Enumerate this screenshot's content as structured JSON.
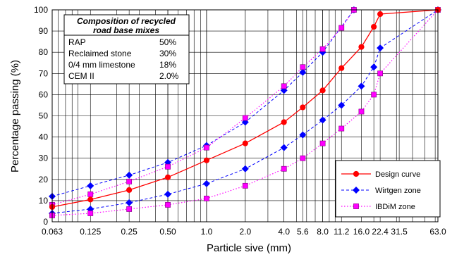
{
  "chart_data": {
    "type": "line",
    "xlabel": "Particle sive (mm)",
    "ylabel": "Percentage passing (%)",
    "x_scale": "log",
    "xlim": [
      0.063,
      63.0
    ],
    "ylim": [
      0,
      100
    ],
    "grid": true,
    "x_ticks": [
      0.063,
      0.125,
      0.25,
      0.5,
      1.0,
      2.0,
      4.0,
      5.6,
      8.0,
      11.2,
      16.0,
      22.4,
      31.5,
      63.0
    ],
    "x_tick_labels": [
      "0.063",
      "0.125",
      "0.25",
      "0.50",
      "1.0",
      "2.0",
      "4.0",
      "5.6",
      "8.0",
      "11.2",
      "16.0",
      "22.4",
      "31.5",
      "63.0"
    ],
    "y_ticks": [
      0,
      10,
      20,
      30,
      40,
      50,
      60,
      70,
      80,
      90,
      100
    ],
    "y_tick_labels": [
      "0",
      "10",
      "20",
      "30",
      "40",
      "50",
      "60",
      "70",
      "80",
      "90",
      "100"
    ],
    "legend_position": "bottom-right",
    "series": [
      {
        "name": "Design curve",
        "color": "#ff0000",
        "style": "solid-line-circle-markers",
        "points": [
          [
            0.063,
            7
          ],
          [
            0.125,
            10.5
          ],
          [
            0.25,
            15
          ],
          [
            0.5,
            21
          ],
          [
            1.0,
            29
          ],
          [
            2.0,
            37
          ],
          [
            4.0,
            47
          ],
          [
            5.6,
            54
          ],
          [
            8.0,
            62
          ],
          [
            11.2,
            72.5
          ],
          [
            16.0,
            82.5
          ],
          [
            20.0,
            92
          ],
          [
            22.4,
            98
          ],
          [
            63.0,
            100
          ]
        ]
      },
      {
        "name": "Wirtgen zone",
        "color": "#0000ff",
        "style": "dashed-line-diamond-markers",
        "upper": [
          [
            0.063,
            12
          ],
          [
            0.125,
            17
          ],
          [
            0.25,
            22
          ],
          [
            0.5,
            28
          ],
          [
            1.0,
            36
          ],
          [
            2.0,
            47
          ],
          [
            4.0,
            62
          ],
          [
            5.6,
            70.5
          ],
          [
            8.0,
            80
          ],
          [
            14.0,
            100
          ]
        ],
        "lower": [
          [
            0.063,
            4
          ],
          [
            0.125,
            6
          ],
          [
            0.25,
            9
          ],
          [
            0.5,
            13
          ],
          [
            1.0,
            18
          ],
          [
            2.0,
            25
          ],
          [
            4.0,
            35
          ],
          [
            5.6,
            41
          ],
          [
            8.0,
            48
          ],
          [
            11.2,
            55
          ],
          [
            16.0,
            64
          ],
          [
            20.0,
            73
          ],
          [
            22.4,
            82
          ],
          [
            63.0,
            100
          ]
        ]
      },
      {
        "name": "IBDiM zone",
        "color": "#ff00ff",
        "style": "dotted-line-square-markers",
        "upper": [
          [
            0.063,
            8
          ],
          [
            0.125,
            13
          ],
          [
            0.25,
            19
          ],
          [
            0.5,
            26
          ],
          [
            1.0,
            35
          ],
          [
            2.0,
            49
          ],
          [
            4.0,
            64
          ],
          [
            5.6,
            73
          ],
          [
            8.0,
            81.5
          ],
          [
            11.2,
            91.5
          ],
          [
            14.0,
            100
          ]
        ],
        "lower": [
          [
            0.063,
            3
          ],
          [
            0.125,
            4
          ],
          [
            0.25,
            6
          ],
          [
            0.5,
            8
          ],
          [
            1.0,
            11
          ],
          [
            2.0,
            17
          ],
          [
            4.0,
            25
          ],
          [
            5.6,
            30
          ],
          [
            8.0,
            37
          ],
          [
            11.2,
            44
          ],
          [
            16.0,
            52
          ],
          [
            20.0,
            60
          ],
          [
            22.4,
            70
          ],
          [
            63.0,
            100
          ]
        ]
      }
    ],
    "composition_table": {
      "header_line1": "Composition of recycled",
      "header_line2": "road base mixes",
      "rows": [
        {
          "component": "RAP",
          "share": "50%"
        },
        {
          "component": "Reclaimed stone",
          "share": "30%"
        },
        {
          "component": "0/4 mm limestone",
          "share": "18%"
        },
        {
          "component": "CEM II",
          "share": "2.0%"
        }
      ]
    }
  }
}
